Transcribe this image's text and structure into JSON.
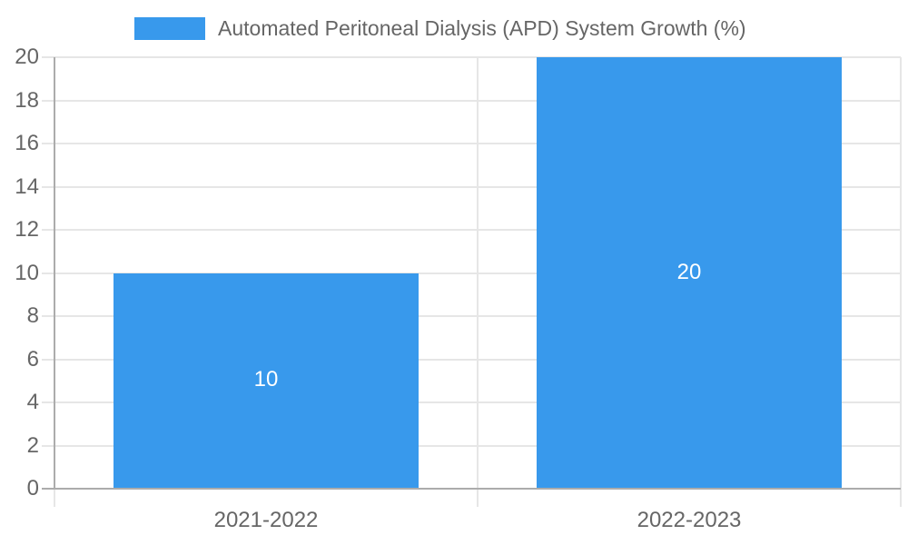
{
  "chart_data": {
    "type": "bar",
    "title": "",
    "xlabel": "",
    "ylabel": "",
    "grid": true,
    "legend": {
      "position": "top",
      "label": "Automated Peritoneal Dialysis (APD) System Growth (%)"
    },
    "categories": [
      "2021-2022",
      "2022-2023"
    ],
    "series": [
      {
        "name": "Automated Peritoneal Dialysis (APD) System Growth (%)",
        "values": [
          10,
          20
        ],
        "color": "#3899EC"
      }
    ],
    "data_labels": [
      "10",
      "20"
    ],
    "yticks": [
      "0",
      "2",
      "4",
      "6",
      "8",
      "10",
      "12",
      "14",
      "16",
      "18",
      "20"
    ],
    "ylim": [
      0,
      20
    ],
    "colors": {
      "bar": "#3899EC",
      "axis_text": "#666666",
      "grid_line": "#E6E6E6",
      "axis_line": "#ACACAC",
      "data_label": "#FFFFFF",
      "background": "#FFFFFF"
    }
  }
}
